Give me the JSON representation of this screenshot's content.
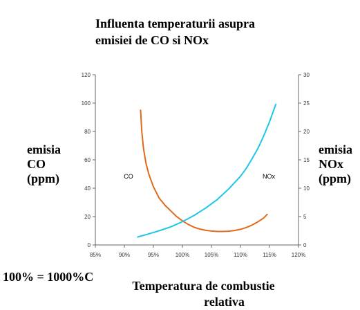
{
  "chart_data": {
    "type": "line",
    "title": "Influenta temperaturii asupra emisiei de CO si NOx",
    "title_lines": [
      "Influenta temperaturii asupra",
      "emisiei de CO si NOx"
    ],
    "xlabel": "Temperatura de combustie relativa",
    "xlabel_lines": [
      "Temperatura de combustie",
      "relativa"
    ],
    "ylabel_left": "emisia CO (ppm)",
    "ylabel_left_lines": [
      "emisia",
      "CO",
      "(ppm)"
    ],
    "ylabel_right": "emisia NOx (ppm)",
    "ylabel_right_lines": [
      "emisia",
      "NOx",
      "(ppm)"
    ],
    "note": "100% = 1000%C",
    "x_ticks": [
      "85%",
      "90%",
      "95%",
      "100%",
      "105%",
      "110%",
      "115%",
      "120%"
    ],
    "x_tick_values": [
      85,
      90,
      95,
      100,
      105,
      110,
      115,
      120
    ],
    "xlim": [
      85,
      120
    ],
    "ylim_left": [
      0,
      120
    ],
    "y_ticks_left": [
      "0",
      "20",
      "40",
      "60",
      "80",
      "100",
      "120"
    ],
    "ylim_right": [
      0,
      30
    ],
    "y_ticks_right": [
      "0",
      "5",
      "10",
      "15",
      "20",
      "25",
      "30"
    ],
    "grid": false,
    "series": [
      {
        "name": "CO",
        "axis": "left",
        "color": "#e06a1c",
        "x": [
          92.8,
          93.0,
          93.3,
          93.7,
          94.2,
          95.0,
          96.0,
          97.0,
          98.0,
          99.0,
          100.0,
          101.0,
          102.0,
          103.0,
          104.0,
          105.0,
          106.0,
          107.0,
          108.0,
          109.0,
          110.0,
          111.0,
          112.0,
          113.0,
          114.0,
          114.6
        ],
        "y": [
          95,
          80,
          68,
          58,
          50,
          41,
          33,
          28,
          24,
          20,
          17,
          14.5,
          12.5,
          11.2,
          10.3,
          9.8,
          9.5,
          9.5,
          9.7,
          10.2,
          11,
          12.3,
          14,
          16.3,
          19,
          21.5
        ]
      },
      {
        "name": "NOx",
        "axis": "right",
        "color": "#1ec6e8",
        "x": [
          92.3,
          94.0,
          96.0,
          98.0,
          100.0,
          102.0,
          104.0,
          106.0,
          108.0,
          110.0,
          111.0,
          112.0,
          113.0,
          114.0,
          115.0,
          116.1
        ],
        "y": [
          1.4,
          1.9,
          2.5,
          3.2,
          4.1,
          5.2,
          6.5,
          8.0,
          9.9,
          12.1,
          13.5,
          15.2,
          17.0,
          19.2,
          21.7,
          24.8
        ]
      }
    ]
  }
}
